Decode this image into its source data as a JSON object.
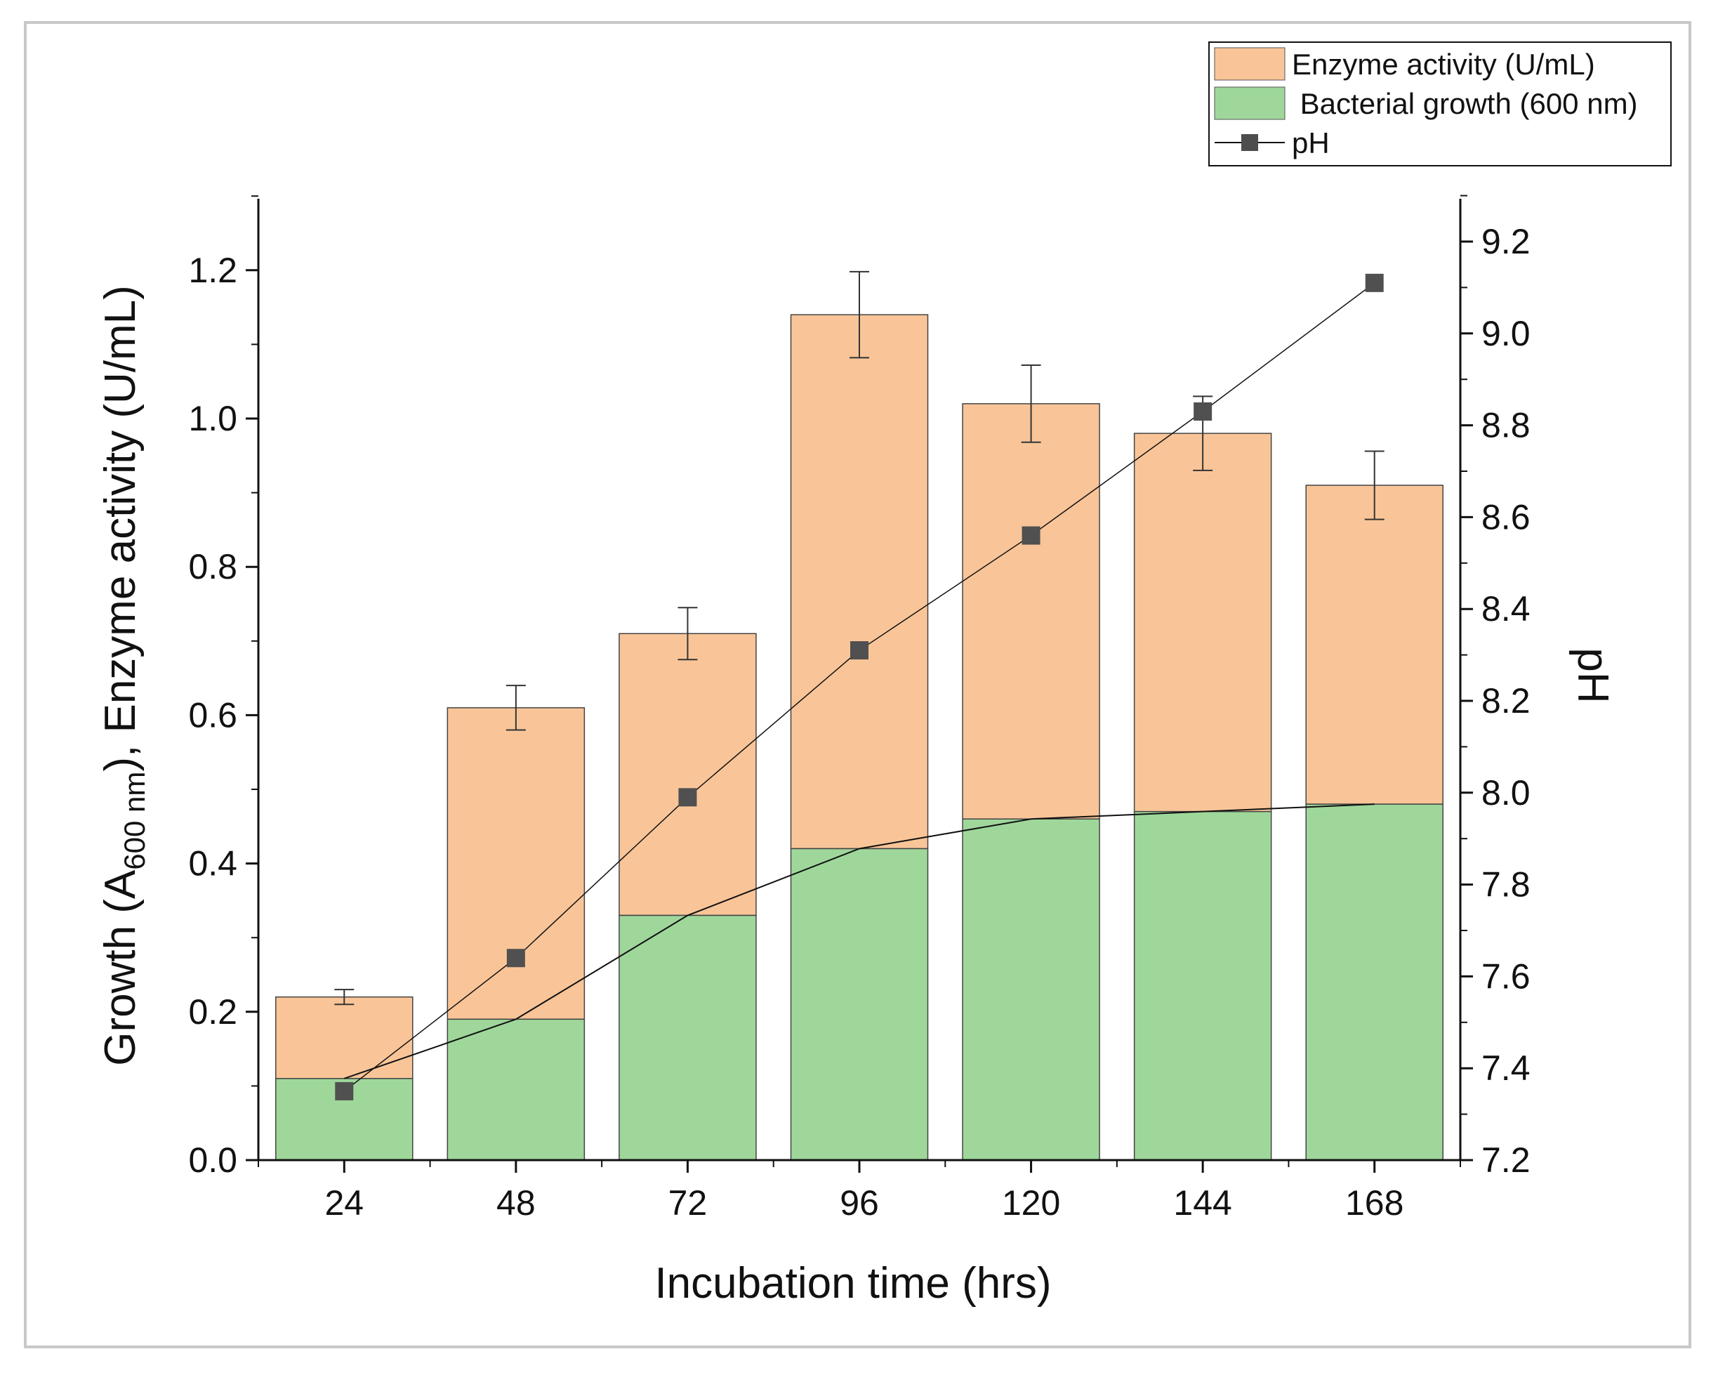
{
  "chart_data": {
    "type": "bar",
    "subtype": "stacked-bar-with-line",
    "categories": [
      "24",
      "48",
      "72",
      "96",
      "120",
      "144",
      "168"
    ],
    "xlabel": "Incubation time (hrs)",
    "ylabel_parts": {
      "pre": "Growth (A",
      "sub": "600 nm",
      "post": "), Enzyme activity (U/mL)"
    },
    "ylabel_right": "pH",
    "ylim": [
      0,
      1.3
    ],
    "yticks": [
      "0.0",
      "0.2",
      "0.4",
      "0.6",
      "0.8",
      "1.0",
      "1.2"
    ],
    "y2lim": [
      7.2,
      9.3
    ],
    "y2ticks": [
      "7.2",
      "7.4",
      "7.6",
      "7.8",
      "8.0",
      "8.2",
      "8.4",
      "8.6",
      "8.8",
      "9.0",
      "9.2"
    ],
    "series": [
      {
        "name": "Bacterial growth (600 nm)",
        "kind": "bar-bottom",
        "color": "#9fd79b",
        "values": [
          0.11,
          0.19,
          0.33,
          0.42,
          0.46,
          0.47,
          0.48
        ]
      },
      {
        "name": "Enzyme activity (U/mL)",
        "kind": "bar-total",
        "color": "#f9c598",
        "values": [
          0.22,
          0.61,
          0.71,
          1.14,
          1.02,
          0.98,
          0.91
        ],
        "errors": [
          0.01,
          0.03,
          0.035,
          0.058,
          0.052,
          0.05,
          0.046
        ]
      },
      {
        "name": "pH",
        "kind": "line",
        "axis": "right",
        "color": "#505050",
        "values": [
          7.35,
          7.64,
          7.99,
          8.31,
          8.56,
          8.83,
          9.11
        ]
      }
    ],
    "legend_position": "top-right",
    "legend_entries": [
      "Enzyme activity (U/mL)",
      " Bacterial growth (600 nm)",
      "pH"
    ]
  }
}
